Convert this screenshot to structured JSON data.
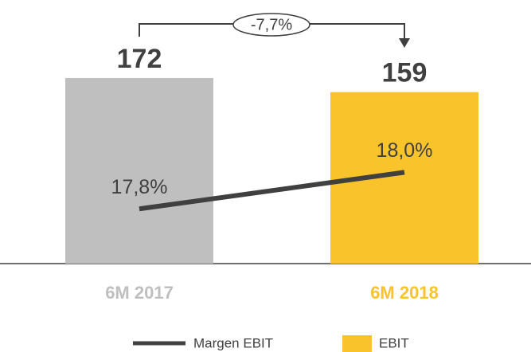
{
  "chart_data": {
    "type": "bar_line",
    "categories": [
      "6M 2017",
      "6M 2018"
    ],
    "category_colors": [
      "#bfbfbf",
      "#f9c32b"
    ],
    "series": [
      {
        "name": "Margen EBIT",
        "type": "line",
        "axis": "y2",
        "color": "#404040",
        "values": [
          17.8,
          18.0
        ],
        "value_labels": [
          "17,8%",
          "18,0%"
        ]
      },
      {
        "name": "EBIT",
        "type": "bar",
        "color": "#f9c32b",
        "colors": [
          "#bfbfbf",
          "#f9c32b"
        ],
        "values": [
          172,
          159
        ]
      }
    ],
    "ylim": [
      0,
      220
    ],
    "y2lim": [
      17.5,
      18.8
    ],
    "annotation": "-7,7%",
    "legend": "bottom"
  }
}
